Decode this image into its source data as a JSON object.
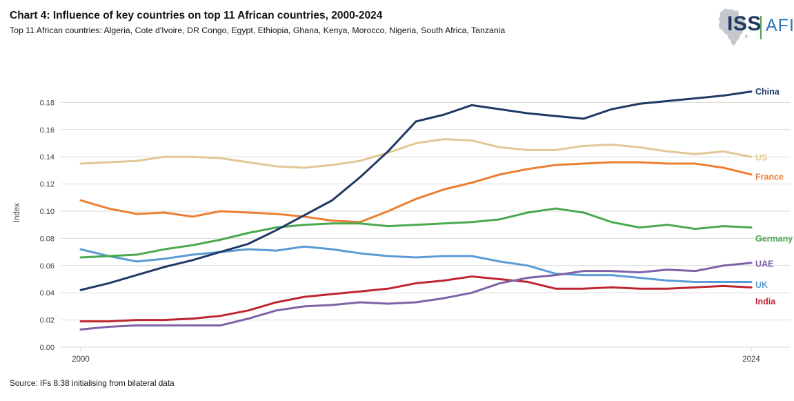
{
  "header": {
    "title": "Chart 4: Influence of key countries on top 11 African countries, 2000-2024",
    "subtitle": "Top 11 African countries: Algeria, Cote d'Ivoire, DR Congo, Egypt, Ethiopia, Ghana, Kenya, Morocco, Nigeria, South Africa, Tanzania"
  },
  "logo": {
    "org": "ISS",
    "unit": "AFI"
  },
  "source": "Source: IFs 8.38 initialising from bilateral data",
  "chart_data": {
    "type": "line",
    "title": "Influence of key countries on top 11 African countries, 2000-2024",
    "xlabel": "",
    "ylabel": "Index",
    "x": [
      2000,
      2001,
      2002,
      2003,
      2004,
      2005,
      2006,
      2007,
      2008,
      2009,
      2010,
      2011,
      2012,
      2013,
      2014,
      2015,
      2016,
      2017,
      2018,
      2019,
      2020,
      2021,
      2022,
      2023,
      2024
    ],
    "xticks": [
      2000,
      2024
    ],
    "yticks": [
      0.0,
      0.02,
      0.04,
      0.06,
      0.08,
      0.1,
      0.12,
      0.14,
      0.16,
      0.18
    ],
    "ylim": [
      0,
      0.19
    ],
    "grid": true,
    "legend_position": "right-end-labels",
    "series": [
      {
        "name": "China",
        "color": "#1f3864",
        "values": [
          0.042,
          0.047,
          0.053,
          0.059,
          0.064,
          0.07,
          0.076,
          0.086,
          0.097,
          0.108,
          0.125,
          0.144,
          0.166,
          0.171,
          0.178,
          0.175,
          0.172,
          0.17,
          0.168,
          0.175,
          0.179,
          0.181,
          0.183,
          0.185,
          0.188
        ]
      },
      {
        "name": "US",
        "color": "#e0c795",
        "values": [
          0.135,
          0.136,
          0.137,
          0.14,
          0.14,
          0.139,
          0.136,
          0.133,
          0.132,
          0.134,
          0.137,
          0.143,
          0.15,
          0.153,
          0.152,
          0.147,
          0.145,
          0.145,
          0.148,
          0.149,
          0.147,
          0.144,
          0.142,
          0.144,
          0.14
        ]
      },
      {
        "name": "France",
        "color": "#ed7d31",
        "values": [
          0.108,
          0.102,
          0.098,
          0.099,
          0.096,
          0.1,
          0.099,
          0.098,
          0.096,
          0.093,
          0.092,
          0.1,
          0.109,
          0.116,
          0.121,
          0.127,
          0.131,
          0.134,
          0.135,
          0.136,
          0.136,
          0.135,
          0.135,
          0.132,
          0.127
        ]
      },
      {
        "name": "Germany",
        "color": "#4aa84e",
        "values": [
          0.066,
          0.067,
          0.068,
          0.072,
          0.075,
          0.079,
          0.084,
          0.088,
          0.09,
          0.091,
          0.091,
          0.089,
          0.09,
          0.091,
          0.092,
          0.094,
          0.099,
          0.102,
          0.099,
          0.092,
          0.088,
          0.09,
          0.087,
          0.089,
          0.088
        ]
      },
      {
        "name": "UAE",
        "color": "#7e62a8",
        "values": [
          0.013,
          0.015,
          0.016,
          0.016,
          0.016,
          0.016,
          0.021,
          0.027,
          0.03,
          0.031,
          0.033,
          0.032,
          0.033,
          0.036,
          0.04,
          0.047,
          0.051,
          0.053,
          0.056,
          0.056,
          0.055,
          0.057,
          0.056,
          0.06,
          0.062
        ]
      },
      {
        "name": "UK",
        "color": "#5b9bd5",
        "values": [
          0.072,
          0.067,
          0.063,
          0.065,
          0.068,
          0.07,
          0.072,
          0.071,
          0.074,
          0.072,
          0.069,
          0.067,
          0.066,
          0.067,
          0.067,
          0.063,
          0.06,
          0.054,
          0.053,
          0.053,
          0.051,
          0.049,
          0.048,
          0.048,
          0.048
        ]
      },
      {
        "name": "India",
        "color": "#be2530",
        "values": [
          0.019,
          0.019,
          0.02,
          0.02,
          0.021,
          0.023,
          0.027,
          0.033,
          0.037,
          0.039,
          0.041,
          0.043,
          0.047,
          0.049,
          0.052,
          0.05,
          0.048,
          0.043,
          0.043,
          0.044,
          0.043,
          0.043,
          0.044,
          0.045,
          0.044
        ]
      }
    ]
  }
}
